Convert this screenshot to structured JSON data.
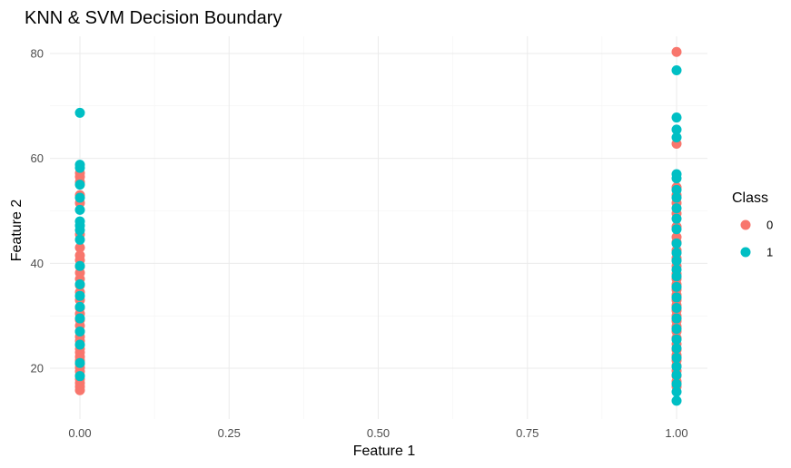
{
  "chart_data": {
    "type": "scatter",
    "title": "KNN & SVM Decision Boundary",
    "xlabel": "Feature 1",
    "ylabel": "Feature 2",
    "xlim": [
      -0.07,
      1.05
    ],
    "ylim": [
      10,
      83
    ],
    "x_ticks": [
      0,
      0.25,
      0.5,
      0.75,
      1
    ],
    "x_tick_labels": [
      "0.00",
      "0.25",
      "0.50",
      "0.75",
      "1.00"
    ],
    "y_ticks": [
      20,
      40,
      60,
      80
    ],
    "y_tick_labels": [
      "20",
      "40",
      "60",
      "80"
    ],
    "grid": true,
    "legend": {
      "title": "Class",
      "position": "right",
      "entries": [
        {
          "label": "0",
          "color": "#F8766D"
        },
        {
          "label": "1",
          "color": "#00BFC4"
        }
      ]
    },
    "series": [
      {
        "name": "0",
        "color": "#F8766D",
        "points": [
          [
            0,
            15.8
          ],
          [
            0,
            16.5
          ],
          [
            0,
            17.2
          ],
          [
            0,
            17.9
          ],
          [
            0,
            18.6
          ],
          [
            0,
            19.4
          ],
          [
            0,
            20.1
          ],
          [
            0,
            20.8
          ],
          [
            0,
            21.5
          ],
          [
            0,
            22.2
          ],
          [
            0,
            23.0
          ],
          [
            0,
            23.7
          ],
          [
            0,
            24.4
          ],
          [
            0,
            25.2
          ],
          [
            0,
            26.0
          ],
          [
            0,
            27.0
          ],
          [
            0,
            28.1
          ],
          [
            0,
            29.2
          ],
          [
            0,
            30.4
          ],
          [
            0,
            31.5
          ],
          [
            0,
            33.0
          ],
          [
            0,
            34.5
          ],
          [
            0,
            35.8
          ],
          [
            0,
            37.0
          ],
          [
            0,
            38.2
          ],
          [
            0,
            39.4
          ],
          [
            0,
            40.6
          ],
          [
            0,
            41.5
          ],
          [
            0,
            43.0
          ],
          [
            0,
            45.5
          ],
          [
            0,
            51.5
          ],
          [
            0,
            53.0
          ],
          [
            0,
            55.5
          ],
          [
            0,
            56.5
          ],
          [
            0,
            57.2
          ],
          [
            1,
            16.5
          ],
          [
            1,
            17.5
          ],
          [
            1,
            18.5
          ],
          [
            1,
            19.5
          ],
          [
            1,
            20.5
          ],
          [
            1,
            21.5
          ],
          [
            1,
            22.5
          ],
          [
            1,
            23.5
          ],
          [
            1,
            24.6
          ],
          [
            1,
            25.8
          ],
          [
            1,
            27.0
          ],
          [
            1,
            28.0
          ],
          [
            1,
            29.0
          ],
          [
            1,
            30.0
          ],
          [
            1,
            31.0
          ],
          [
            1,
            32.0
          ],
          [
            1,
            33.0
          ],
          [
            1,
            34.0
          ],
          [
            1,
            35.0
          ],
          [
            1,
            36.0
          ],
          [
            1,
            37.0
          ],
          [
            1,
            38.0
          ],
          [
            1,
            39.5
          ],
          [
            1,
            41.0
          ],
          [
            1,
            42.5
          ],
          [
            1,
            44.0
          ],
          [
            1,
            45.0
          ],
          [
            1,
            47.0
          ],
          [
            1,
            49.5
          ],
          [
            1,
            51.5
          ],
          [
            1,
            53.0
          ],
          [
            1,
            54.5
          ],
          [
            1,
            62.8
          ],
          [
            1,
            80.3
          ]
        ]
      },
      {
        "name": "1",
        "color": "#00BFC4",
        "points": [
          [
            0,
            18.5
          ],
          [
            0,
            21.0
          ],
          [
            0,
            24.5
          ],
          [
            0,
            27.0
          ],
          [
            0,
            29.5
          ],
          [
            0,
            31.7
          ],
          [
            0,
            33.8
          ],
          [
            0,
            36.0
          ],
          [
            0,
            39.5
          ],
          [
            0,
            44.5
          ],
          [
            0,
            46.3
          ],
          [
            0,
            47.2
          ],
          [
            0,
            48.0
          ],
          [
            0,
            50.2
          ],
          [
            0,
            52.5
          ],
          [
            0,
            55.0
          ],
          [
            0,
            58.2
          ],
          [
            0,
            58.8
          ],
          [
            0,
            68.7
          ],
          [
            1,
            13.8
          ],
          [
            1,
            15.5
          ],
          [
            1,
            17.0
          ],
          [
            1,
            18.7
          ],
          [
            1,
            20.3
          ],
          [
            1,
            22.0
          ],
          [
            1,
            23.8
          ],
          [
            1,
            25.5
          ],
          [
            1,
            27.5
          ],
          [
            1,
            29.5
          ],
          [
            1,
            31.5
          ],
          [
            1,
            33.5
          ],
          [
            1,
            35.5
          ],
          [
            1,
            37.5
          ],
          [
            1,
            38.8
          ],
          [
            1,
            40.5
          ],
          [
            1,
            42.0
          ],
          [
            1,
            43.8
          ],
          [
            1,
            46.5
          ],
          [
            1,
            48.5
          ],
          [
            1,
            50.5
          ],
          [
            1,
            52.5
          ],
          [
            1,
            54.0
          ],
          [
            1,
            56.2
          ],
          [
            1,
            57.0
          ],
          [
            1,
            64.0
          ],
          [
            1,
            65.5
          ],
          [
            1,
            67.8
          ],
          [
            1,
            76.8
          ]
        ]
      }
    ]
  }
}
